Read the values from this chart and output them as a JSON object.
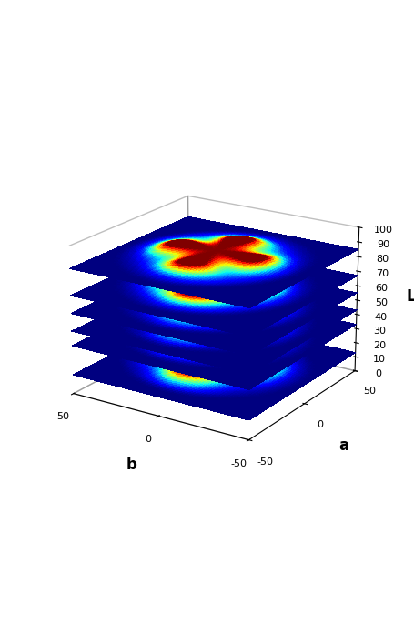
{
  "title": "",
  "xlabel": "b",
  "ylabel": "a",
  "zlabel": "L",
  "b_range": [
    -50,
    50
  ],
  "a_range": [
    -50,
    50
  ],
  "L_range": [
    0,
    100
  ],
  "L_planes_bottom": [
    13,
    33,
    43,
    55,
    67,
    85
  ],
  "L_planes_top": [
    18,
    39,
    50,
    60,
    70,
    90
  ],
  "grid_n": 80,
  "colormap": "jet",
  "background_color": "#ffffff",
  "elev": 20,
  "azim": -57,
  "figsize": [
    4.55,
    6.85
  ],
  "dpi": 100
}
